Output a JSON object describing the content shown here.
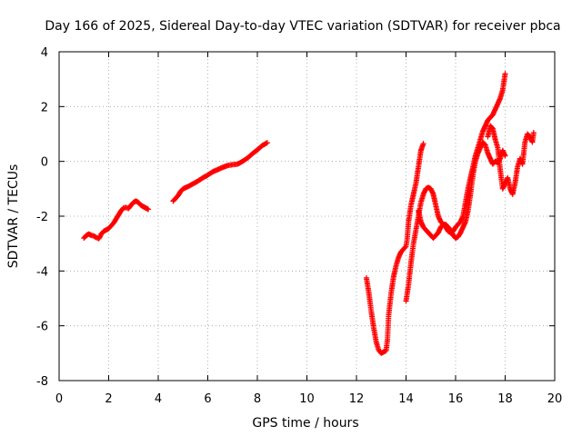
{
  "chart_data": {
    "type": "scatter",
    "title": "Day 166 of 2025, Sidereal Day-to-day VTEC variation (SDTVAR) for receiver pbca",
    "xlabel": "GPS time / hours",
    "ylabel": "SDTVAR / TECUs",
    "xlim": [
      0,
      20
    ],
    "ylim": [
      -8,
      4
    ],
    "x_ticks": [
      "0",
      "2",
      "4",
      "6",
      "8",
      "10",
      "12",
      "14",
      "16",
      "18",
      "20"
    ],
    "y_ticks": [
      "-8",
      "-6",
      "-4",
      "-2",
      "0",
      "2",
      "4"
    ],
    "grid": true,
    "marker": "plus",
    "color": "#ff0000",
    "series": [
      {
        "points": [
          [
            1.0,
            -2.8
          ],
          [
            1.1,
            -2.7
          ],
          [
            1.2,
            -2.65
          ],
          [
            1.3,
            -2.7
          ],
          [
            1.4,
            -2.72
          ],
          [
            1.5,
            -2.78
          ],
          [
            1.6,
            -2.82
          ],
          [
            1.65,
            -2.75
          ],
          [
            1.7,
            -2.65
          ],
          [
            1.8,
            -2.55
          ],
          [
            1.9,
            -2.5
          ],
          [
            2.0,
            -2.45
          ],
          [
            2.1,
            -2.35
          ],
          [
            2.2,
            -2.25
          ],
          [
            2.3,
            -2.1
          ],
          [
            2.4,
            -1.95
          ],
          [
            2.5,
            -1.8
          ],
          [
            2.6,
            -1.7
          ],
          [
            2.7,
            -1.68
          ],
          [
            2.8,
            -1.72
          ],
          [
            2.9,
            -1.6
          ],
          [
            3.0,
            -1.5
          ],
          [
            3.1,
            -1.45
          ],
          [
            3.2,
            -1.5
          ],
          [
            3.3,
            -1.6
          ],
          [
            3.4,
            -1.65
          ],
          [
            3.5,
            -1.7
          ],
          [
            3.6,
            -1.75
          ],
          [
            4.6,
            -1.45
          ],
          [
            4.7,
            -1.35
          ],
          [
            4.8,
            -1.25
          ],
          [
            4.9,
            -1.1
          ],
          [
            5.0,
            -1.0
          ],
          [
            5.2,
            -0.92
          ],
          [
            5.4,
            -0.82
          ],
          [
            5.6,
            -0.72
          ],
          [
            5.8,
            -0.6
          ],
          [
            6.0,
            -0.5
          ],
          [
            6.2,
            -0.38
          ],
          [
            6.4,
            -0.3
          ],
          [
            6.6,
            -0.22
          ],
          [
            6.8,
            -0.15
          ],
          [
            7.0,
            -0.12
          ],
          [
            7.2,
            -0.1
          ],
          [
            7.4,
            0.0
          ],
          [
            7.6,
            0.12
          ],
          [
            7.8,
            0.28
          ],
          [
            8.0,
            0.42
          ],
          [
            8.2,
            0.58
          ],
          [
            8.4,
            0.68
          ],
          [
            12.4,
            -4.25
          ],
          [
            12.5,
            -4.8
          ],
          [
            12.6,
            -5.5
          ],
          [
            12.7,
            -6.1
          ],
          [
            12.8,
            -6.6
          ],
          [
            12.9,
            -6.9
          ],
          [
            13.0,
            -7.0
          ],
          [
            13.1,
            -6.95
          ],
          [
            13.2,
            -6.9
          ],
          [
            13.25,
            -6.5
          ],
          [
            13.3,
            -5.6
          ],
          [
            13.4,
            -4.8
          ],
          [
            13.5,
            -4.2
          ],
          [
            13.6,
            -3.8
          ],
          [
            13.7,
            -3.5
          ],
          [
            13.8,
            -3.3
          ],
          [
            13.9,
            -3.2
          ],
          [
            14.0,
            -3.1
          ],
          [
            14.05,
            -2.8
          ],
          [
            14.1,
            -2.2
          ],
          [
            14.2,
            -1.6
          ],
          [
            14.3,
            -1.2
          ],
          [
            14.4,
            -0.8
          ],
          [
            14.5,
            -0.2
          ],
          [
            14.6,
            0.4
          ],
          [
            14.7,
            0.65
          ],
          [
            14.0,
            -5.1
          ],
          [
            14.1,
            -4.5
          ],
          [
            14.2,
            -3.7
          ],
          [
            14.3,
            -3.0
          ],
          [
            14.4,
            -2.5
          ],
          [
            14.5,
            -2.0
          ],
          [
            14.6,
            -1.5
          ],
          [
            14.7,
            -1.2
          ],
          [
            14.8,
            -1.0
          ],
          [
            14.9,
            -0.95
          ],
          [
            15.0,
            -1.0
          ],
          [
            15.1,
            -1.2
          ],
          [
            15.2,
            -1.6
          ],
          [
            15.3,
            -2.0
          ],
          [
            15.4,
            -2.2
          ],
          [
            15.5,
            -2.3
          ],
          [
            15.6,
            -2.4
          ],
          [
            15.7,
            -2.55
          ],
          [
            15.8,
            -2.6
          ],
          [
            15.9,
            -2.55
          ],
          [
            16.0,
            -2.4
          ],
          [
            16.1,
            -2.3
          ],
          [
            16.2,
            -2.2
          ],
          [
            16.3,
            -2.0
          ],
          [
            16.4,
            -1.5
          ],
          [
            16.5,
            -1.0
          ],
          [
            16.6,
            -0.6
          ],
          [
            16.7,
            -0.2
          ],
          [
            16.8,
            0.2
          ],
          [
            16.9,
            0.5
          ],
          [
            17.0,
            0.8
          ],
          [
            17.1,
            1.1
          ],
          [
            17.2,
            1.3
          ],
          [
            17.3,
            1.5
          ],
          [
            17.4,
            1.6
          ],
          [
            17.5,
            1.7
          ],
          [
            17.6,
            1.9
          ],
          [
            17.7,
            2.1
          ],
          [
            17.8,
            2.3
          ],
          [
            17.9,
            2.6
          ],
          [
            18.0,
            3.2
          ],
          [
            14.5,
            -1.8
          ],
          [
            14.6,
            -2.2
          ],
          [
            14.7,
            -2.4
          ],
          [
            14.8,
            -2.5
          ],
          [
            14.9,
            -2.6
          ],
          [
            15.0,
            -2.7
          ],
          [
            15.1,
            -2.8
          ],
          [
            15.2,
            -2.7
          ],
          [
            15.3,
            -2.6
          ],
          [
            15.4,
            -2.4
          ],
          [
            15.5,
            -2.3
          ],
          [
            15.6,
            -2.3
          ],
          [
            15.7,
            -2.4
          ],
          [
            15.8,
            -2.5
          ],
          [
            15.9,
            -2.7
          ],
          [
            16.0,
            -2.8
          ],
          [
            16.1,
            -2.75
          ],
          [
            16.2,
            -2.6
          ],
          [
            16.3,
            -2.4
          ],
          [
            16.4,
            -2.2
          ],
          [
            16.5,
            -1.8
          ],
          [
            16.6,
            -1.2
          ],
          [
            16.7,
            -0.5
          ],
          [
            16.8,
            0.0
          ],
          [
            16.9,
            0.3
          ],
          [
            17.0,
            0.5
          ],
          [
            17.1,
            0.7
          ],
          [
            17.2,
            0.6
          ],
          [
            17.3,
            0.3
          ],
          [
            17.4,
            0.1
          ],
          [
            17.5,
            -0.1
          ],
          [
            17.6,
            0.0
          ],
          [
            17.7,
            -0.05
          ],
          [
            17.8,
            0.1
          ],
          [
            17.9,
            0.4
          ],
          [
            18.0,
            0.2
          ],
          [
            17.3,
            0.9
          ],
          [
            17.4,
            1.3
          ],
          [
            17.5,
            1.2
          ],
          [
            17.6,
            0.8
          ],
          [
            17.7,
            0.5
          ],
          [
            17.8,
            -0.3
          ],
          [
            17.9,
            -1.0
          ],
          [
            18.1,
            -0.6
          ],
          [
            18.2,
            -1.0
          ],
          [
            18.3,
            -1.2
          ],
          [
            18.4,
            -0.8
          ],
          [
            18.5,
            -0.2
          ],
          [
            18.6,
            0.1
          ],
          [
            18.7,
            -0.1
          ],
          [
            18.8,
            0.7
          ],
          [
            18.9,
            1.0
          ],
          [
            19.0,
            0.9
          ],
          [
            19.1,
            0.7
          ],
          [
            19.15,
            1.05
          ]
        ]
      }
    ]
  }
}
